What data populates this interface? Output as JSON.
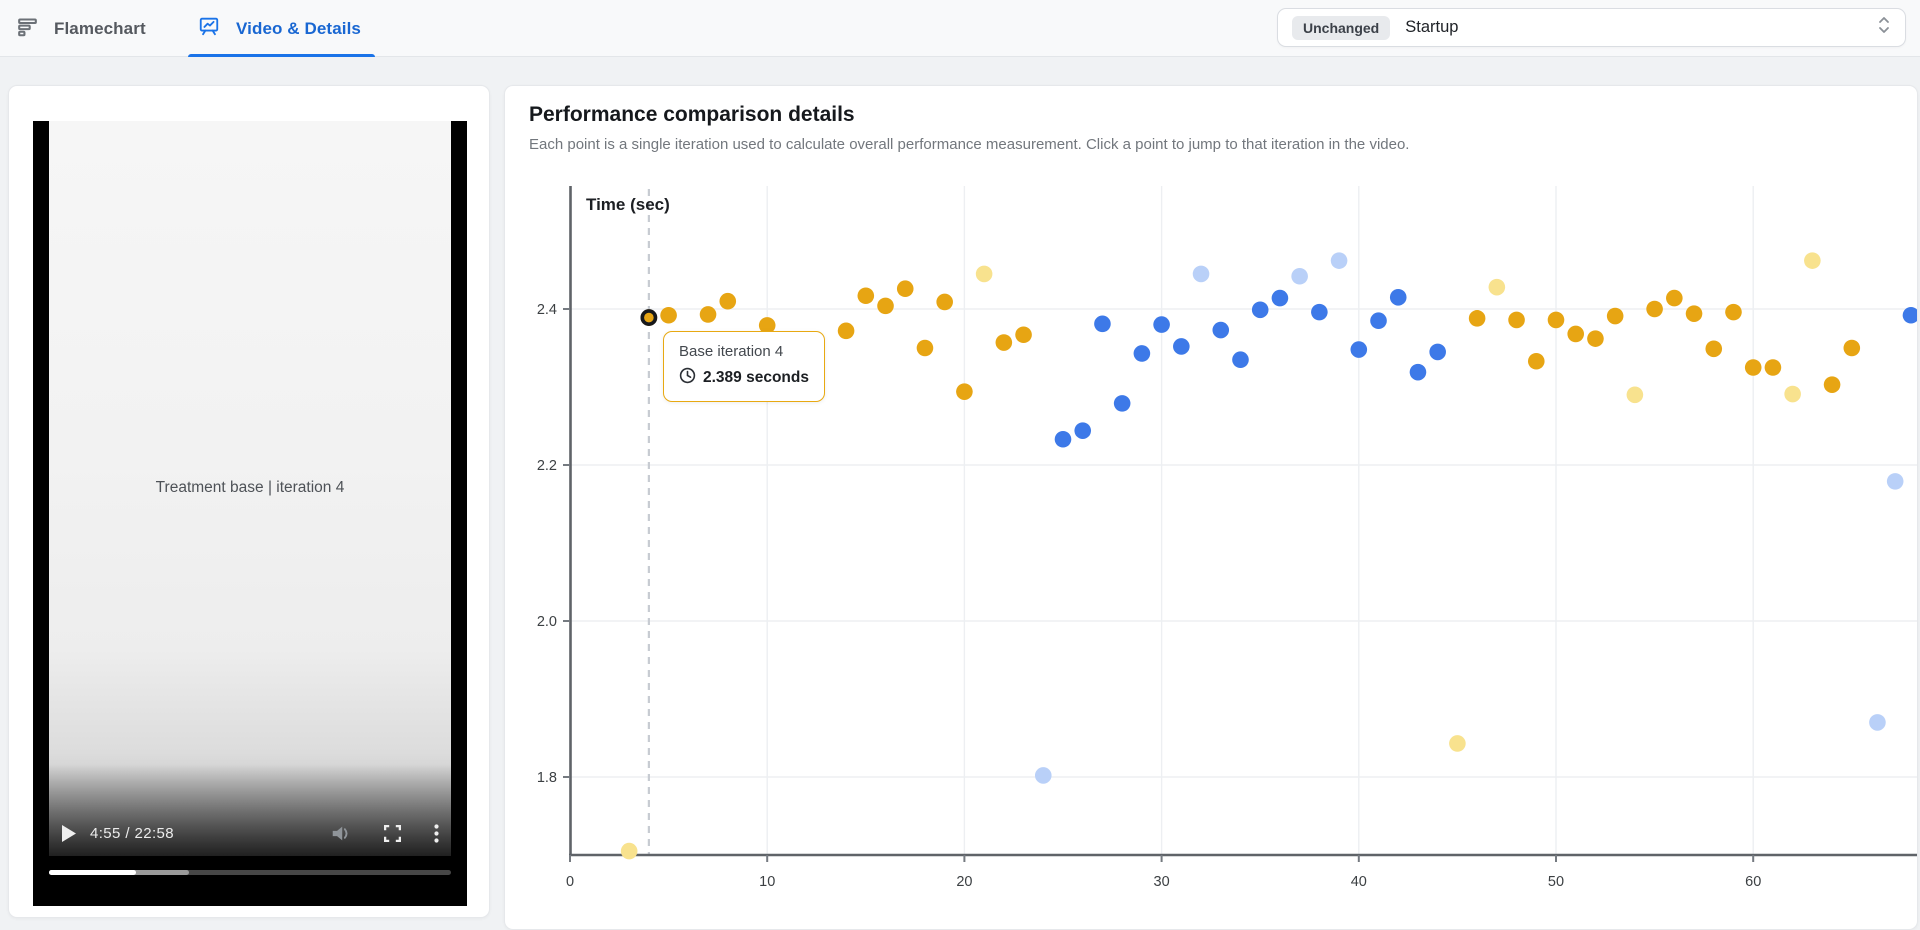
{
  "tabs": [
    {
      "label": "Flamechart",
      "active": false
    },
    {
      "label": "Video & Details",
      "active": true
    }
  ],
  "metric_selector": {
    "badge": "Unchanged",
    "value": "Startup"
  },
  "video": {
    "caption": "Treatment base | iteration 4",
    "time": "4:55 / 22:58",
    "played_pct": 21.6,
    "buffered_pct": 34.8
  },
  "panel": {
    "title": "Performance comparison details",
    "subtitle": "Each point is a single iteration used to calculate overall performance measurement. Click a point to jump to that iteration in the video."
  },
  "tooltip": {
    "title": "Base iteration 4",
    "value": "2.389 seconds"
  },
  "chart_data": {
    "type": "scatter",
    "ylabel": "Time (sec)",
    "xlabel": "",
    "x_ticks": [
      0,
      10,
      20,
      30,
      40,
      50,
      60
    ],
    "y_ticks": [
      "2.4",
      "2.2",
      "2.0",
      "1.8"
    ],
    "xlim": [
      0,
      68.5
    ],
    "ylim": [
      1.69,
      2.56
    ],
    "grid": true,
    "selected_point": {
      "series": "base",
      "iteration": 4,
      "x": 4,
      "y": 2.389,
      "label": "Base iteration 4",
      "value_seconds": 2.389
    },
    "series": [
      {
        "name": "base",
        "color": "#e7a513",
        "points": [
          [
            4,
            2.389
          ],
          [
            5,
            2.392
          ],
          [
            7,
            2.393
          ],
          [
            8,
            2.41
          ],
          [
            10,
            2.379
          ],
          [
            14,
            2.372
          ],
          [
            15,
            2.417
          ],
          [
            16,
            2.404
          ],
          [
            17,
            2.426
          ],
          [
            18,
            2.35
          ],
          [
            19,
            2.409
          ],
          [
            20,
            2.294
          ],
          [
            22,
            2.357
          ],
          [
            23,
            2.367
          ],
          [
            46,
            2.388
          ],
          [
            48,
            2.386
          ],
          [
            49,
            2.333
          ],
          [
            50,
            2.386
          ],
          [
            51,
            2.368
          ],
          [
            52,
            2.362
          ],
          [
            53,
            2.391
          ],
          [
            55,
            2.4
          ],
          [
            56,
            2.414
          ],
          [
            57,
            2.394
          ],
          [
            58,
            2.349
          ],
          [
            59,
            2.396
          ],
          [
            60,
            2.325
          ],
          [
            61,
            2.325
          ],
          [
            64,
            2.303
          ],
          [
            65,
            2.35
          ]
        ]
      },
      {
        "name": "base-faded",
        "color": "#f8e28e",
        "points": [
          [
            3,
            1.705
          ],
          [
            21,
            2.445
          ],
          [
            45,
            1.843
          ],
          [
            47,
            2.428
          ],
          [
            54,
            2.29
          ],
          [
            62,
            2.291
          ],
          [
            63,
            2.462
          ]
        ]
      },
      {
        "name": "treatment",
        "color": "#3d79e8",
        "points": [
          [
            25,
            2.233
          ],
          [
            26,
            2.244
          ],
          [
            27,
            2.381
          ],
          [
            28,
            2.279
          ],
          [
            29,
            2.343
          ],
          [
            30,
            2.38
          ],
          [
            31,
            2.352
          ],
          [
            33,
            2.373
          ],
          [
            34,
            2.335
          ],
          [
            35,
            2.399
          ],
          [
            36,
            2.414
          ],
          [
            38,
            2.396
          ],
          [
            40,
            2.348
          ],
          [
            41,
            2.385
          ],
          [
            42,
            2.415
          ],
          [
            43,
            2.319
          ],
          [
            44,
            2.345
          ],
          [
            68,
            2.392
          ]
        ]
      },
      {
        "name": "treatment-faded",
        "color": "#b9d0f8",
        "points": [
          [
            24,
            1.802
          ],
          [
            32,
            2.445
          ],
          [
            37,
            2.442
          ],
          [
            39,
            2.462
          ],
          [
            66.3,
            1.87
          ],
          [
            67.2,
            2.179
          ]
        ]
      }
    ]
  }
}
